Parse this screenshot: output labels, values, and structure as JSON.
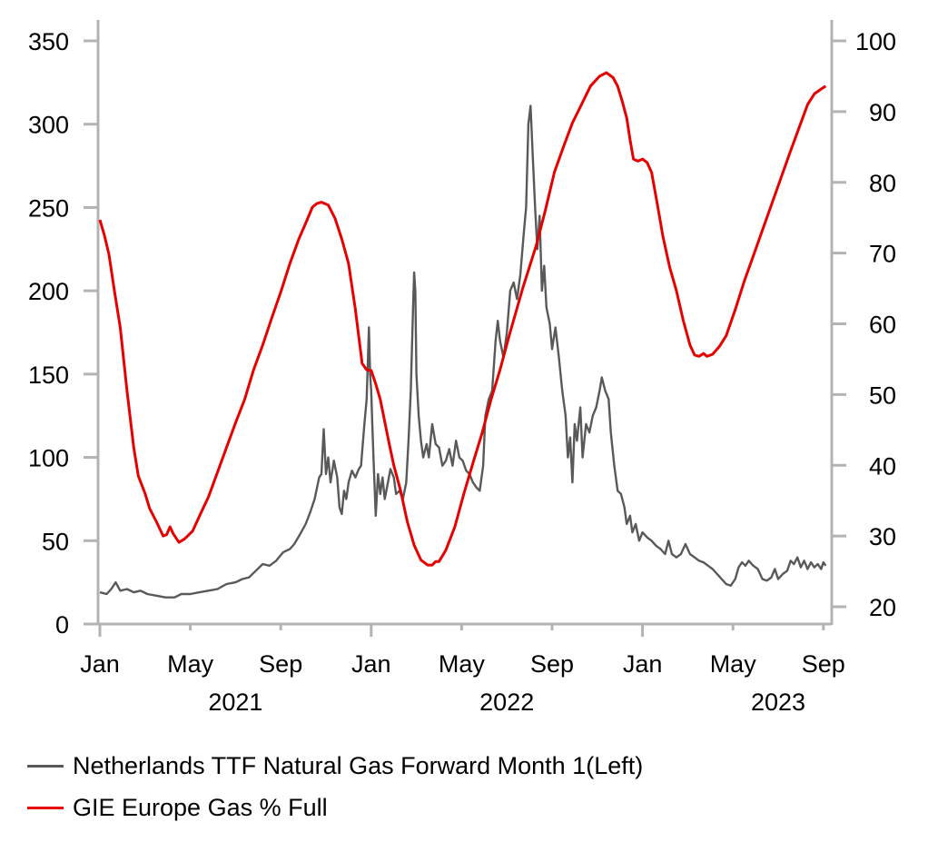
{
  "chart_data": {
    "type": "line",
    "title": "",
    "xlabel": "",
    "x_unit": "months since Jan 2021",
    "x_ticks": [
      {
        "t": 0,
        "label": "Jan"
      },
      {
        "t": 4,
        "label": "May"
      },
      {
        "t": 8,
        "label": "Sep"
      },
      {
        "t": 12,
        "label": "Jan"
      },
      {
        "t": 16,
        "label": "May"
      },
      {
        "t": 20,
        "label": "Sep"
      },
      {
        "t": 24,
        "label": "Jan"
      },
      {
        "t": 28,
        "label": "May"
      },
      {
        "t": 32,
        "label": "Sep"
      }
    ],
    "year_labels": [
      {
        "t": 6,
        "label": "2021"
      },
      {
        "t": 18,
        "label": "2022"
      },
      {
        "t": 30,
        "label": "2023"
      }
    ],
    "xlim": [
      0,
      32.2
    ],
    "y_left": {
      "label": "",
      "lim": [
        0,
        350
      ],
      "ticks": [
        0,
        50,
        100,
        150,
        200,
        250,
        300,
        350
      ]
    },
    "y_right": {
      "label": "",
      "lim": [
        20,
        100
      ],
      "ticks": [
        20,
        30,
        40,
        50,
        60,
        70,
        80,
        90,
        100
      ]
    },
    "grid": false,
    "legend_position": "bottom-left",
    "series": [
      {
        "name": "Netherlands TTF Natural Gas Forward Month 1(Left)",
        "axis": "left",
        "color": "#595959",
        "points": [
          [
            0,
            19
          ],
          [
            0.3,
            18
          ],
          [
            0.5,
            21
          ],
          [
            0.7,
            25
          ],
          [
            0.9,
            20
          ],
          [
            1.2,
            21
          ],
          [
            1.5,
            19
          ],
          [
            1.8,
            20
          ],
          [
            2.1,
            18
          ],
          [
            2.5,
            17
          ],
          [
            2.9,
            16
          ],
          [
            3.3,
            16
          ],
          [
            3.6,
            18
          ],
          [
            4.0,
            18
          ],
          [
            4.4,
            19
          ],
          [
            4.8,
            20
          ],
          [
            5.2,
            21
          ],
          [
            5.6,
            24
          ],
          [
            6.0,
            25
          ],
          [
            6.3,
            27
          ],
          [
            6.6,
            28
          ],
          [
            6.9,
            32
          ],
          [
            7.2,
            36
          ],
          [
            7.5,
            35
          ],
          [
            7.8,
            38
          ],
          [
            8.1,
            43
          ],
          [
            8.4,
            45
          ],
          [
            8.6,
            48
          ],
          [
            8.9,
            55
          ],
          [
            9.1,
            60
          ],
          [
            9.3,
            67
          ],
          [
            9.5,
            75
          ],
          [
            9.7,
            88
          ],
          [
            9.8,
            90
          ],
          [
            9.9,
            117
          ],
          [
            10.0,
            90
          ],
          [
            10.1,
            100
          ],
          [
            10.2,
            85
          ],
          [
            10.35,
            98
          ],
          [
            10.5,
            88
          ],
          [
            10.6,
            70
          ],
          [
            10.7,
            66
          ],
          [
            10.8,
            80
          ],
          [
            10.9,
            75
          ],
          [
            11.0,
            85
          ],
          [
            11.15,
            92
          ],
          [
            11.3,
            88
          ],
          [
            11.45,
            93
          ],
          [
            11.55,
            95
          ],
          [
            11.7,
            120
          ],
          [
            11.8,
            135
          ],
          [
            11.9,
            178
          ],
          [
            11.95,
            150
          ],
          [
            12.0,
            140
          ],
          [
            12.05,
            120
          ],
          [
            12.1,
            100
          ],
          [
            12.2,
            65
          ],
          [
            12.3,
            90
          ],
          [
            12.4,
            78
          ],
          [
            12.5,
            88
          ],
          [
            12.6,
            75
          ],
          [
            12.7,
            82
          ],
          [
            12.85,
            93
          ],
          [
            13.0,
            88
          ],
          [
            13.1,
            78
          ],
          [
            13.25,
            80
          ],
          [
            13.4,
            75
          ],
          [
            13.55,
            85
          ],
          [
            13.65,
            110
          ],
          [
            13.75,
            140
          ],
          [
            13.85,
            190
          ],
          [
            13.9,
            211
          ],
          [
            13.95,
            200
          ],
          [
            14.0,
            150
          ],
          [
            14.1,
            125
          ],
          [
            14.2,
            110
          ],
          [
            14.3,
            100
          ],
          [
            14.45,
            108
          ],
          [
            14.55,
            100
          ],
          [
            14.7,
            120
          ],
          [
            14.85,
            108
          ],
          [
            15.0,
            106
          ],
          [
            15.15,
            95
          ],
          [
            15.3,
            98
          ],
          [
            15.45,
            105
          ],
          [
            15.6,
            95
          ],
          [
            15.75,
            110
          ],
          [
            15.9,
            100
          ],
          [
            16.05,
            98
          ],
          [
            16.2,
            92
          ],
          [
            16.35,
            90
          ],
          [
            16.5,
            85
          ],
          [
            16.65,
            82
          ],
          [
            16.8,
            80
          ],
          [
            16.95,
            95
          ],
          [
            17.05,
            125
          ],
          [
            17.2,
            135
          ],
          [
            17.35,
            140
          ],
          [
            17.5,
            170
          ],
          [
            17.6,
            182
          ],
          [
            17.7,
            170
          ],
          [
            17.85,
            160
          ],
          [
            18.0,
            175
          ],
          [
            18.15,
            200
          ],
          [
            18.3,
            205
          ],
          [
            18.45,
            195
          ],
          [
            18.6,
            210
          ],
          [
            18.75,
            235
          ],
          [
            18.85,
            250
          ],
          [
            18.95,
            300
          ],
          [
            19.05,
            311
          ],
          [
            19.15,
            280
          ],
          [
            19.25,
            250
          ],
          [
            19.35,
            225
          ],
          [
            19.45,
            245
          ],
          [
            19.55,
            200
          ],
          [
            19.65,
            215
          ],
          [
            19.75,
            190
          ],
          [
            19.9,
            180
          ],
          [
            20.0,
            165
          ],
          [
            20.15,
            178
          ],
          [
            20.3,
            160
          ],
          [
            20.45,
            140
          ],
          [
            20.6,
            125
          ],
          [
            20.7,
            100
          ],
          [
            20.8,
            112
          ],
          [
            20.9,
            85
          ],
          [
            21.0,
            120
          ],
          [
            21.1,
            110
          ],
          [
            21.25,
            130
          ],
          [
            21.35,
            100
          ],
          [
            21.5,
            120
          ],
          [
            21.65,
            115
          ],
          [
            21.8,
            125
          ],
          [
            21.95,
            130
          ],
          [
            22.1,
            140
          ],
          [
            22.2,
            148
          ],
          [
            22.35,
            140
          ],
          [
            22.5,
            135
          ],
          [
            22.6,
            115
          ],
          [
            22.75,
            95
          ],
          [
            22.9,
            80
          ],
          [
            23.05,
            78
          ],
          [
            23.2,
            70
          ],
          [
            23.3,
            60
          ],
          [
            23.45,
            65
          ],
          [
            23.55,
            55
          ],
          [
            23.7,
            60
          ],
          [
            23.85,
            50
          ],
          [
            24.0,
            55
          ],
          [
            24.2,
            52
          ],
          [
            24.4,
            50
          ],
          [
            24.6,
            47
          ],
          [
            24.8,
            45
          ],
          [
            25.0,
            42
          ],
          [
            25.15,
            50
          ],
          [
            25.3,
            42
          ],
          [
            25.5,
            40
          ],
          [
            25.7,
            42
          ],
          [
            25.9,
            48
          ],
          [
            26.1,
            42
          ],
          [
            26.3,
            40
          ],
          [
            26.5,
            38
          ],
          [
            26.7,
            37
          ],
          [
            26.9,
            35
          ],
          [
            27.1,
            33
          ],
          [
            27.3,
            30
          ],
          [
            27.5,
            27
          ],
          [
            27.7,
            24
          ],
          [
            27.9,
            23
          ],
          [
            28.1,
            27
          ],
          [
            28.25,
            34
          ],
          [
            28.4,
            37
          ],
          [
            28.55,
            35
          ],
          [
            28.7,
            38
          ],
          [
            28.9,
            35
          ],
          [
            29.1,
            33
          ],
          [
            29.3,
            27
          ],
          [
            29.5,
            26
          ],
          [
            29.7,
            28
          ],
          [
            29.85,
            33
          ],
          [
            30.0,
            27
          ],
          [
            30.2,
            30
          ],
          [
            30.4,
            32
          ],
          [
            30.55,
            38
          ],
          [
            30.7,
            36
          ],
          [
            30.85,
            40
          ],
          [
            31.0,
            34
          ],
          [
            31.15,
            38
          ],
          [
            31.3,
            33
          ],
          [
            31.45,
            37
          ],
          [
            31.6,
            34
          ],
          [
            31.75,
            36
          ],
          [
            31.9,
            33
          ],
          [
            32.0,
            37
          ],
          [
            32.1,
            35
          ]
        ]
      },
      {
        "name": "GIE Europe Gas % Full",
        "axis": "right",
        "color": "#e60000",
        "points": [
          [
            0,
            74.7
          ],
          [
            0.2,
            72.5
          ],
          [
            0.4,
            69.8
          ],
          [
            0.65,
            64.5
          ],
          [
            0.9,
            59.5
          ],
          [
            1.2,
            50.5
          ],
          [
            1.5,
            42.5
          ],
          [
            1.7,
            38.5
          ],
          [
            2.0,
            36.0
          ],
          [
            2.2,
            33.9
          ],
          [
            2.5,
            32.0
          ],
          [
            2.8,
            30.0
          ],
          [
            2.95,
            30.2
          ],
          [
            3.1,
            31.3
          ],
          [
            3.25,
            30.3
          ],
          [
            3.5,
            29.1
          ],
          [
            3.75,
            29.6
          ],
          [
            4.1,
            30.7
          ],
          [
            4.5,
            33.5
          ],
          [
            4.8,
            35.5
          ],
          [
            5.2,
            39.0
          ],
          [
            5.6,
            42.5
          ],
          [
            6.0,
            46.0
          ],
          [
            6.4,
            49.3
          ],
          [
            6.8,
            53.5
          ],
          [
            7.2,
            57.0
          ],
          [
            7.6,
            60.8
          ],
          [
            8.0,
            64.5
          ],
          [
            8.4,
            68.5
          ],
          [
            8.8,
            72.0
          ],
          [
            9.1,
            74.2
          ],
          [
            9.4,
            76.5
          ],
          [
            9.6,
            77.0
          ],
          [
            9.8,
            77.2
          ],
          [
            10.1,
            76.8
          ],
          [
            10.4,
            74.9
          ],
          [
            10.7,
            72.0
          ],
          [
            11.0,
            68.5
          ],
          [
            11.3,
            62.0
          ],
          [
            11.6,
            54.4
          ],
          [
            11.8,
            53.5
          ],
          [
            12.0,
            53.4
          ],
          [
            12.2,
            51.5
          ],
          [
            12.4,
            49.3
          ],
          [
            12.8,
            43.0
          ],
          [
            13.0,
            40.0
          ],
          [
            13.3,
            36.4
          ],
          [
            13.6,
            32.0
          ],
          [
            13.9,
            28.7
          ],
          [
            14.2,
            26.6
          ],
          [
            14.5,
            25.9
          ],
          [
            14.7,
            25.9
          ],
          [
            14.85,
            26.4
          ],
          [
            15.0,
            26.4
          ],
          [
            15.3,
            28.0
          ],
          [
            15.7,
            31.3
          ],
          [
            16.1,
            36.0
          ],
          [
            16.5,
            40.3
          ],
          [
            16.9,
            44.5
          ],
          [
            17.3,
            49.3
          ],
          [
            17.7,
            53.5
          ],
          [
            18.1,
            58.3
          ],
          [
            18.7,
            65.0
          ],
          [
            19.3,
            71.1
          ],
          [
            19.7,
            76.0
          ],
          [
            20.1,
            81.4
          ],
          [
            20.5,
            85.0
          ],
          [
            20.9,
            88.4
          ],
          [
            21.3,
            91.0
          ],
          [
            21.7,
            93.6
          ],
          [
            22.1,
            95.0
          ],
          [
            22.4,
            95.5
          ],
          [
            22.7,
            94.8
          ],
          [
            22.9,
            93.6
          ],
          [
            23.1,
            91.5
          ],
          [
            23.3,
            89.1
          ],
          [
            23.45,
            86.0
          ],
          [
            23.6,
            83.3
          ],
          [
            23.8,
            83.0
          ],
          [
            24.0,
            83.3
          ],
          [
            24.2,
            82.8
          ],
          [
            24.4,
            81.4
          ],
          [
            24.65,
            77.0
          ],
          [
            24.9,
            72.4
          ],
          [
            25.2,
            68.0
          ],
          [
            25.5,
            64.7
          ],
          [
            25.8,
            60.5
          ],
          [
            26.1,
            57.0
          ],
          [
            26.3,
            55.6
          ],
          [
            26.5,
            55.4
          ],
          [
            26.7,
            55.8
          ],
          [
            26.85,
            55.4
          ],
          [
            27.1,
            55.7
          ],
          [
            27.4,
            56.8
          ],
          [
            27.7,
            58.3
          ],
          [
            28.1,
            62.0
          ],
          [
            28.5,
            66.0
          ],
          [
            29.0,
            70.5
          ],
          [
            29.5,
            75.0
          ],
          [
            30.0,
            79.5
          ],
          [
            30.5,
            84.0
          ],
          [
            30.9,
            87.5
          ],
          [
            31.3,
            91.0
          ],
          [
            31.6,
            92.5
          ],
          [
            31.9,
            93.2
          ],
          [
            32.1,
            93.6
          ]
        ]
      }
    ]
  }
}
